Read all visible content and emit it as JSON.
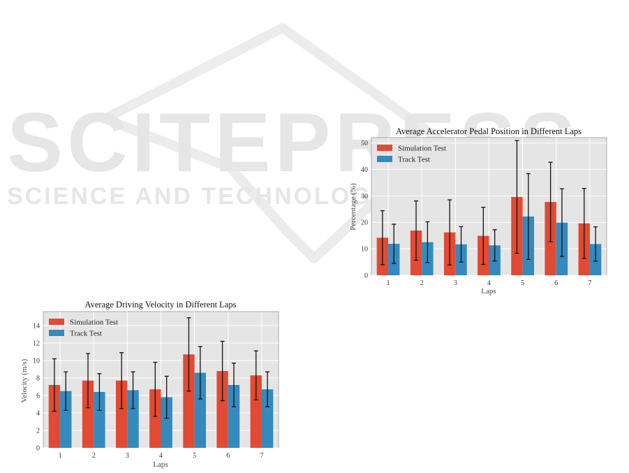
{
  "watermark": {
    "main": "SCITEPRESS",
    "sub": "SCIENCE AND TECHNOLOGY PUBLICATIONS"
  },
  "colors": {
    "simulation": "#e24a33",
    "track": "#348abd",
    "plot_bg": "#e5e5e5",
    "grid": "#ffffff"
  },
  "chart_data": [
    {
      "type": "bar",
      "title": "Average Accelerator Pedal Position in Different Laps",
      "xlabel": "Laps",
      "ylabel": "Percentage (%)",
      "categories": [
        "1",
        "2",
        "3",
        "4",
        "5",
        "6",
        "7"
      ],
      "ylim": [
        0,
        52
      ],
      "yticks": [
        0,
        10,
        20,
        30,
        40,
        50
      ],
      "grid": true,
      "legend_position": "top-left",
      "series": [
        {
          "name": "Simulation Test",
          "color": "#e24a33",
          "values": [
            14.2,
            16.9,
            16.2,
            14.9,
            29.6,
            27.7,
            19.6
          ],
          "errors": [
            10.2,
            11.2,
            12.3,
            10.8,
            21.3,
            15.0,
            13.2
          ]
        },
        {
          "name": "Track Test",
          "color": "#348abd",
          "values": [
            11.9,
            12.5,
            11.7,
            11.3,
            22.2,
            19.9,
            11.8
          ],
          "errors": [
            7.4,
            7.7,
            6.7,
            5.9,
            16.2,
            12.8,
            6.5
          ]
        }
      ]
    },
    {
      "type": "bar",
      "title": "Average Driving Velocity in Different Laps",
      "xlabel": "Laps",
      "ylabel": "Velocity (m/s)",
      "categories": [
        "1",
        "2",
        "3",
        "4",
        "5",
        "6",
        "7"
      ],
      "ylim": [
        0,
        15.6
      ],
      "yticks": [
        0,
        2,
        4,
        6,
        8,
        10,
        12,
        14
      ],
      "grid": true,
      "legend_position": "top-left",
      "series": [
        {
          "name": "Simulation Test",
          "color": "#e24a33",
          "values": [
            7.2,
            7.7,
            7.7,
            6.7,
            10.7,
            8.8,
            8.3
          ],
          "errors": [
            3.0,
            3.1,
            3.2,
            3.1,
            4.2,
            3.4,
            2.8
          ]
        },
        {
          "name": "Track Test",
          "color": "#348abd",
          "values": [
            6.5,
            6.4,
            6.6,
            5.8,
            8.6,
            7.2,
            6.7
          ],
          "errors": [
            2.2,
            2.1,
            2.1,
            2.4,
            3.0,
            2.5,
            2.0
          ]
        }
      ]
    }
  ]
}
